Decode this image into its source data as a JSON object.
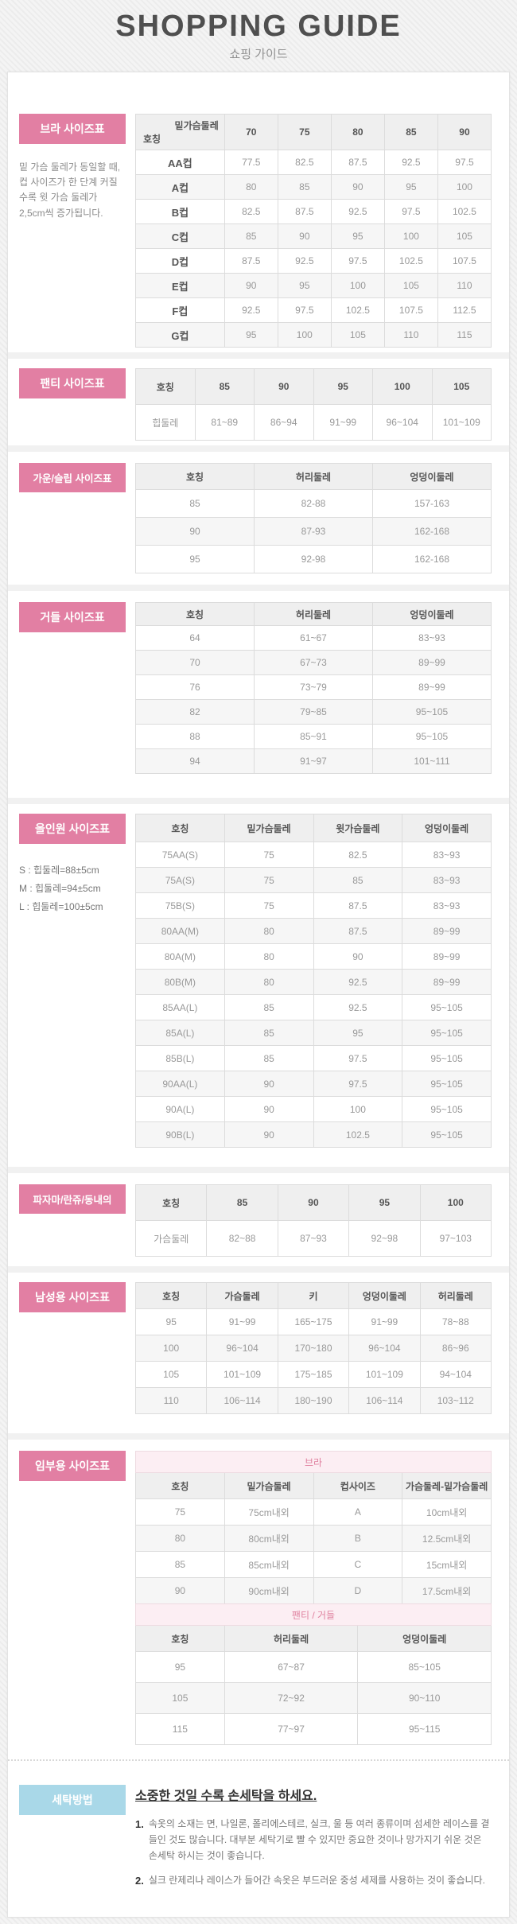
{
  "header": {
    "title": "SHOPPING GUIDE",
    "subtitle": "쇼핑 가이드"
  },
  "colors": {
    "accent_pink": "#e27fa3",
    "accent_blue": "#a9d8e8",
    "subtable_title_bg": "#fceef3",
    "subtable_title_text": "#e0819f",
    "table_header_bg": "#efefef",
    "alt_row_bg": "#f6f6f6"
  },
  "sections": {
    "bra": {
      "label": "브라 사이즈표",
      "note": "밑 가슴 둘레가 동일할 때, 컵 사이즈가 한 단계 커질수록 윗 가슴 둘레가 2,5cm씩 증가됩니다.",
      "table": {
        "corner": {
          "top": "밑가슴둘레",
          "bottom": "호칭"
        },
        "columns": [
          "70",
          "75",
          "80",
          "85",
          "90"
        ],
        "colw": [
          "25%",
          "15%",
          "15%",
          "15%",
          "15%",
          "15%"
        ],
        "rows": [
          [
            "AA컵",
            "77.5",
            "82.5",
            "87.5",
            "92.5",
            "97.5"
          ],
          [
            "A컵",
            "80",
            "85",
            "90",
            "95",
            "100"
          ],
          [
            "B컵",
            "82.5",
            "87.5",
            "92.5",
            "97.5",
            "102.5"
          ],
          [
            "C컵",
            "85",
            "90",
            "95",
            "100",
            "105"
          ],
          [
            "D컵",
            "87.5",
            "92.5",
            "97.5",
            "102.5",
            "107.5"
          ],
          [
            "E컵",
            "90",
            "95",
            "100",
            "105",
            "110"
          ],
          [
            "F컵",
            "92.5",
            "97.5",
            "102.5",
            "107.5",
            "112.5"
          ],
          [
            "G컵",
            "95",
            "100",
            "105",
            "110",
            "115"
          ]
        ]
      }
    },
    "panty": {
      "label": "팬티 사이즈표",
      "table": {
        "header": [
          "호칭",
          "85",
          "90",
          "95",
          "100",
          "105"
        ],
        "rows": [
          [
            "힙둘레",
            "81~89",
            "86~94",
            "91~99",
            "96~104",
            "101~109"
          ]
        ]
      }
    },
    "gown": {
      "label": "가운/슬립 사이즈표",
      "table": {
        "header": [
          "호칭",
          "허리둘레",
          "엉덩이둘레"
        ],
        "rows": [
          [
            "85",
            "82-88",
            "157-163"
          ],
          [
            "90",
            "87-93",
            "162-168"
          ],
          [
            "95",
            "92-98",
            "162-168"
          ]
        ]
      }
    },
    "girdle": {
      "label": "거들 사이즈표",
      "table": {
        "header": [
          "호칭",
          "허리둘레",
          "엉덩이둘레"
        ],
        "rows": [
          [
            "64",
            "61~67",
            "83~93"
          ],
          [
            "70",
            "67~73",
            "89~99"
          ],
          [
            "76",
            "73~79",
            "89~99"
          ],
          [
            "82",
            "79~85",
            "95~105"
          ],
          [
            "88",
            "85~91",
            "95~105"
          ],
          [
            "94",
            "91~97",
            "101~111"
          ]
        ]
      }
    },
    "allinone": {
      "label": "올인원 사이즈표",
      "notes": [
        "S : 힙둘레=88±5cm",
        "M : 힙둘레=94±5cm",
        "L : 힙둘레=100±5cm"
      ],
      "table": {
        "header": [
          "호칭",
          "밑가슴둘레",
          "윗가슴둘레",
          "엉덩이둘레"
        ],
        "rows": [
          [
            "75AA(S)",
            "75",
            "82.5",
            "83~93"
          ],
          [
            "75A(S)",
            "75",
            "85",
            "83~93"
          ],
          [
            "75B(S)",
            "75",
            "87.5",
            "83~93"
          ],
          [
            "80AA(M)",
            "80",
            "87.5",
            "89~99"
          ],
          [
            "80A(M)",
            "80",
            "90",
            "89~99"
          ],
          [
            "80B(M)",
            "80",
            "92.5",
            "89~99"
          ],
          [
            "85AA(L)",
            "85",
            "92.5",
            "95~105"
          ],
          [
            "85A(L)",
            "85",
            "95",
            "95~105"
          ],
          [
            "85B(L)",
            "85",
            "97.5",
            "95~105"
          ],
          [
            "90AA(L)",
            "90",
            "97.5",
            "95~105"
          ],
          [
            "90A(L)",
            "90",
            "100",
            "95~105"
          ],
          [
            "90B(L)",
            "90",
            "102.5",
            "95~105"
          ]
        ]
      }
    },
    "pajama": {
      "label": "파자마/란쥬/동내의",
      "table": {
        "header": [
          "호칭",
          "85",
          "90",
          "95",
          "100"
        ],
        "rows": [
          [
            "가슴둘레",
            "82~88",
            "87~93",
            "92~98",
            "97~103"
          ]
        ]
      }
    },
    "men": {
      "label": "남성용 사이즈표",
      "table": {
        "header": [
          "호칭",
          "가슴둘레",
          "키",
          "엉덩이둘레",
          "허리둘레"
        ],
        "rows": [
          [
            "95",
            "91~99",
            "165~175",
            "91~99",
            "78~88"
          ],
          [
            "100",
            "96~104",
            "170~180",
            "96~104",
            "86~96"
          ],
          [
            "105",
            "101~109",
            "175~185",
            "101~109",
            "94~104"
          ],
          [
            "110",
            "106~114",
            "180~190",
            "106~114",
            "103~112"
          ]
        ]
      }
    },
    "maternity": {
      "label": "임부용 사이즈표",
      "bra_table": {
        "title": "브라",
        "header": [
          "호칭",
          "밑가슴둘레",
          "컵사이즈",
          "가슴둘레-밑가슴둘레"
        ],
        "rows": [
          [
            "75",
            "75cm내외",
            "A",
            "10cm내외"
          ],
          [
            "80",
            "80cm내외",
            "B",
            "12.5cm내외"
          ],
          [
            "85",
            "85cm내외",
            "C",
            "15cm내외"
          ],
          [
            "90",
            "90cm내외",
            "D",
            "17.5cm내외"
          ]
        ]
      },
      "panty_table": {
        "title": "팬티 / 거들",
        "header": [
          "호칭",
          "허리둘레",
          "엉덩이둘레"
        ],
        "colw": [
          "25%",
          "37.5%",
          "37.5%"
        ],
        "rows": [
          [
            "95",
            "67~87",
            "85~105"
          ],
          [
            "105",
            "72~92",
            "90~110"
          ],
          [
            "115",
            "77~97",
            "95~115"
          ]
        ]
      }
    },
    "washing": {
      "label": "세탁방법",
      "title": "소중한 것일 수록 손세탁을 하세요.",
      "items": [
        {
          "num": "1.",
          "text": "속옷의 소재는 면, 나일론, 폴리에스테르, 실크, 울 등 여러 종류이며 섬세한 레이스를 곁들인 것도 많습니다. 대부분 세탁기로 빨 수 있지만 중요한 것이나 망가지기 쉬운 것은 손세탁 하시는 것이 좋습니다."
        },
        {
          "num": "2.",
          "text": "실크 란제리나 레이스가 들어간 속옷은 부드러운 중성 세제를 사용하는 것이 좋습니다."
        }
      ]
    }
  }
}
